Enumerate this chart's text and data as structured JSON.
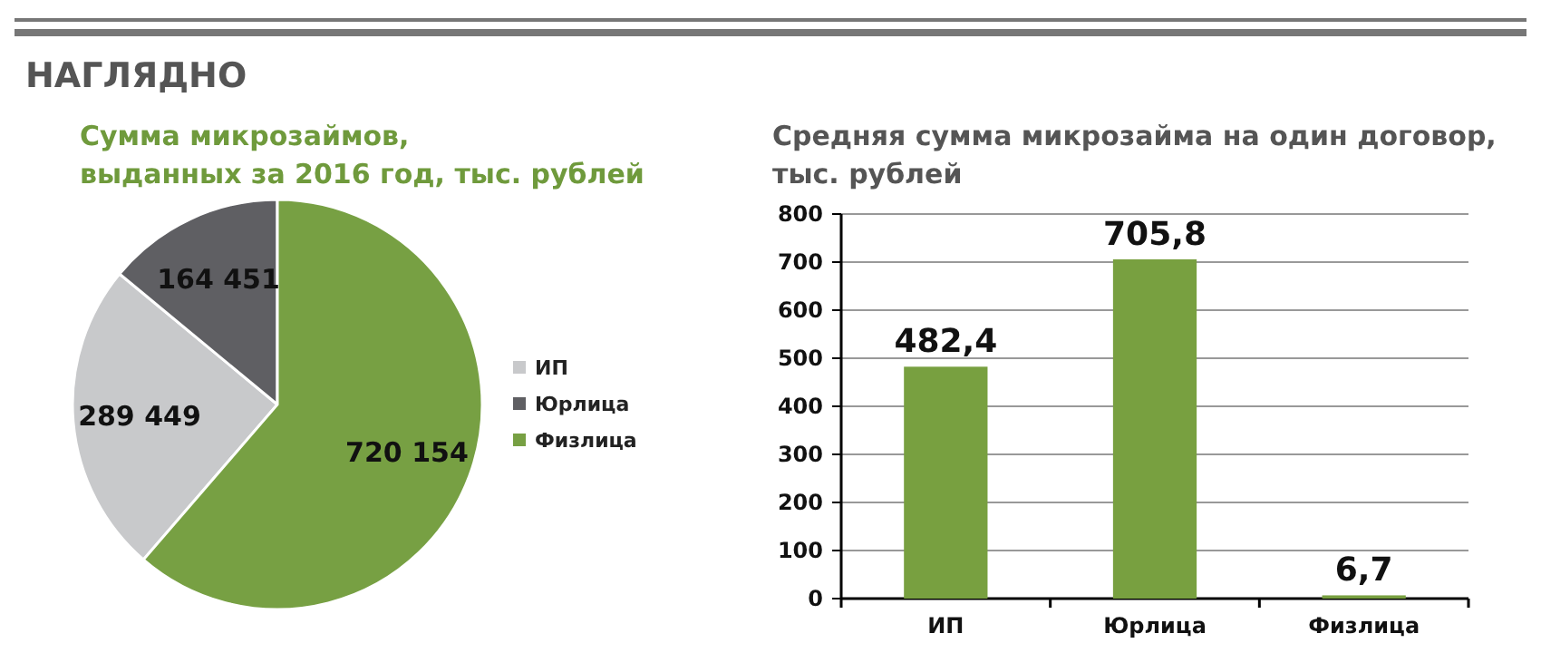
{
  "chart_data": [
    {
      "type": "pie",
      "title": "Сумма микрозаймов,\nвыданных за 2016 год, тыс. рублей",
      "annotations": [
        "НАГЛЯДНО"
      ],
      "categories": [
        "ИП",
        "Юрлица",
        "Физлица"
      ],
      "values": [
        289449,
        164451,
        720154
      ],
      "value_labels": [
        "289 449",
        "164 451",
        "720 154"
      ],
      "colors": [
        "#c8c9cb",
        "#5f5f63",
        "#77a043"
      ],
      "legend": "right"
    },
    {
      "type": "bar",
      "title": "Средняя сумма микрозайма на один договор,\nтыс. рублей",
      "categories": [
        "ИП",
        "Юрлица",
        "Физлица"
      ],
      "values": [
        482.4,
        705.8,
        6.7
      ],
      "value_labels": [
        "482,4",
        "705,8",
        "6,7"
      ],
      "color": "#78a040",
      "ylim": [
        0,
        800
      ],
      "yticks": [
        0,
        100,
        200,
        300,
        400,
        500,
        600,
        700,
        800
      ],
      "grid": "y"
    }
  ]
}
